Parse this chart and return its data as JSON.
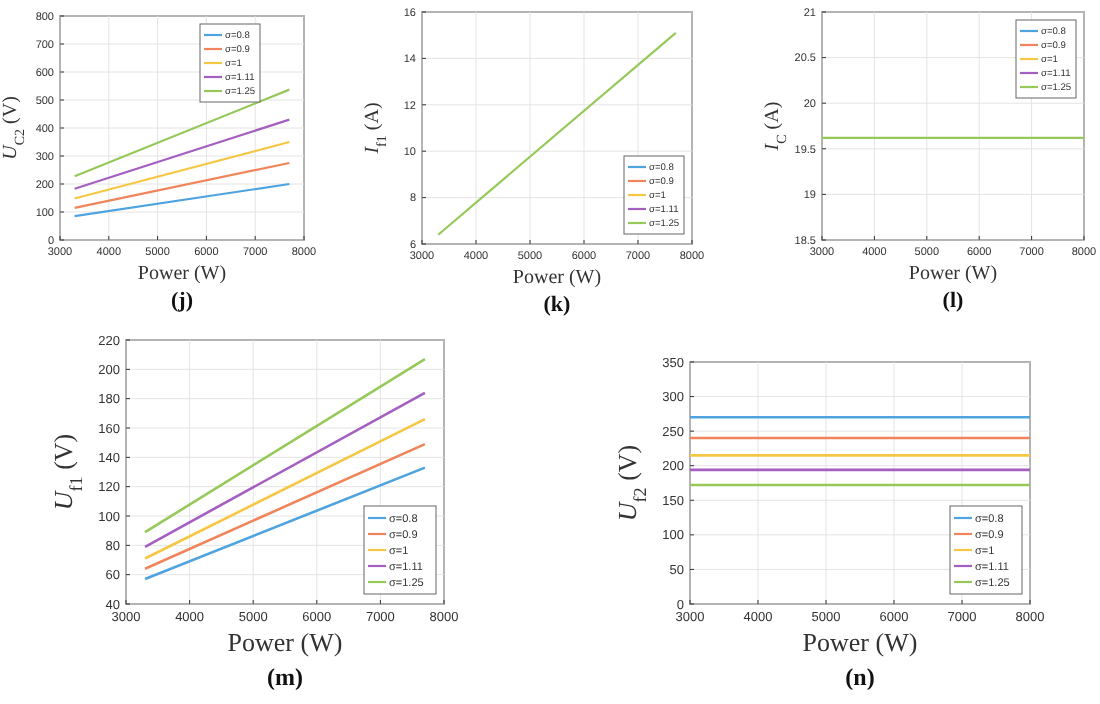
{
  "chart_data": [
    {
      "type": "line",
      "title": "(j)",
      "xlabel": "Power (W)",
      "ylabel": "U$_{C2}$ (V)",
      "x": [
        3300,
        7700
      ],
      "xlim": [
        3000,
        8000
      ],
      "xticks": [
        3000,
        4000,
        5000,
        6000,
        7000,
        8000
      ],
      "ylim": [
        0,
        800
      ],
      "yticks": [
        0,
        100,
        200,
        300,
        400,
        500,
        600,
        700,
        800
      ],
      "grid": true,
      "legend": "top right",
      "series": [
        {
          "name": "σ=0.8",
          "color": "#4fa3df",
          "values": [
            85,
            200
          ]
        },
        {
          "name": "σ=0.9",
          "color": "#f0845a",
          "values": [
            115,
            275
          ]
        },
        {
          "name": "σ=1",
          "color": "#f6c745",
          "values": [
            148,
            350
          ]
        },
        {
          "name": "σ=1.11",
          "color": "#a45fc0",
          "values": [
            183,
            430
          ]
        },
        {
          "name": "σ=1.25",
          "color": "#96c85a",
          "values": [
            228,
            537
          ]
        }
      ]
    },
    {
      "type": "line",
      "title": "(k)",
      "xlabel": "Power (W)",
      "ylabel": "I$_{f1}$ (A)",
      "x": [
        3300,
        7700
      ],
      "xlim": [
        3000,
        8000
      ],
      "xticks": [
        3000,
        4000,
        5000,
        6000,
        7000,
        8000
      ],
      "ylim": [
        6,
        16
      ],
      "yticks": [
        6,
        8,
        10,
        12,
        14,
        16
      ],
      "grid": true,
      "legend": "bottom right",
      "series": [
        {
          "name": "σ=0.8",
          "color": "#4fa3df",
          "values": [
            null,
            null
          ]
        },
        {
          "name": "σ=0.9",
          "color": "#f0845a",
          "values": [
            null,
            null
          ]
        },
        {
          "name": "σ=1",
          "color": "#f6c745",
          "values": [
            null,
            null
          ]
        },
        {
          "name": "σ=1.11",
          "color": "#a45fc0",
          "values": [
            null,
            null
          ]
        },
        {
          "name": "σ=1.25",
          "color": "#96c85a",
          "values": [
            6.4,
            15.1
          ]
        }
      ]
    },
    {
      "type": "line",
      "title": "(l)",
      "xlabel": "Power (W)",
      "ylabel": "I$_{C}$ (A)",
      "x": [
        3000,
        8000
      ],
      "xlim": [
        3000,
        8000
      ],
      "xticks": [
        3000,
        4000,
        5000,
        6000,
        7000,
        8000
      ],
      "ylim": [
        18.5,
        21
      ],
      "yticks": [
        18.5,
        19,
        19.5,
        20,
        20.5,
        21
      ],
      "grid": true,
      "legend": "top right",
      "series": [
        {
          "name": "σ=0.8",
          "color": "#4fa3df",
          "values": [
            null,
            null
          ]
        },
        {
          "name": "σ=0.9",
          "color": "#f0845a",
          "values": [
            null,
            null
          ]
        },
        {
          "name": "σ=1",
          "color": "#f6c745",
          "values": [
            null,
            null
          ]
        },
        {
          "name": "σ=1.11",
          "color": "#a45fc0",
          "values": [
            null,
            null
          ]
        },
        {
          "name": "σ=1.25",
          "color": "#96c85a",
          "values": [
            19.62,
            19.62
          ]
        }
      ]
    },
    {
      "type": "line",
      "title": "(m)",
      "xlabel": "Power (W)",
      "ylabel": "U$_{f1}$ (V)",
      "x": [
        3300,
        7700
      ],
      "xlim": [
        3000,
        8000
      ],
      "xticks": [
        3000,
        4000,
        5000,
        6000,
        7000,
        8000
      ],
      "ylim": [
        40,
        220
      ],
      "yticks": [
        40,
        60,
        80,
        100,
        120,
        140,
        160,
        180,
        200,
        220
      ],
      "grid": true,
      "legend": "bottom right",
      "series": [
        {
          "name": "σ=0.8",
          "color": "#4fa3df",
          "values": [
            57,
            133
          ]
        },
        {
          "name": "σ=0.9",
          "color": "#f0845a",
          "values": [
            64,
            149
          ]
        },
        {
          "name": "σ=1",
          "color": "#f6c745",
          "values": [
            71,
            166
          ]
        },
        {
          "name": "σ=1.11",
          "color": "#a45fc0",
          "values": [
            79,
            184
          ]
        },
        {
          "name": "σ=1.25",
          "color": "#96c85a",
          "values": [
            89,
            207
          ]
        }
      ]
    },
    {
      "type": "line",
      "title": "(n)",
      "xlabel": "Power (W)",
      "ylabel": "U$_{f2}$ (V)",
      "x": [
        3000,
        8000
      ],
      "xlim": [
        3000,
        8000
      ],
      "xticks": [
        3000,
        4000,
        5000,
        6000,
        7000,
        8000
      ],
      "ylim": [
        0,
        350
      ],
      "yticks": [
        0,
        50,
        100,
        150,
        200,
        250,
        300,
        350
      ],
      "grid": true,
      "legend": "bottom right",
      "series": [
        {
          "name": "σ=0.8",
          "color": "#4fa3df",
          "values": [
            270,
            270
          ]
        },
        {
          "name": "σ=0.9",
          "color": "#f0845a",
          "values": [
            240,
            240
          ]
        },
        {
          "name": "σ=1",
          "color": "#f6c745",
          "values": [
            215,
            215
          ]
        },
        {
          "name": "σ=1.11",
          "color": "#a45fc0",
          "values": [
            194,
            194
          ]
        },
        {
          "name": "σ=1.25",
          "color": "#96c85a",
          "values": [
            172,
            172
          ]
        }
      ]
    }
  ]
}
